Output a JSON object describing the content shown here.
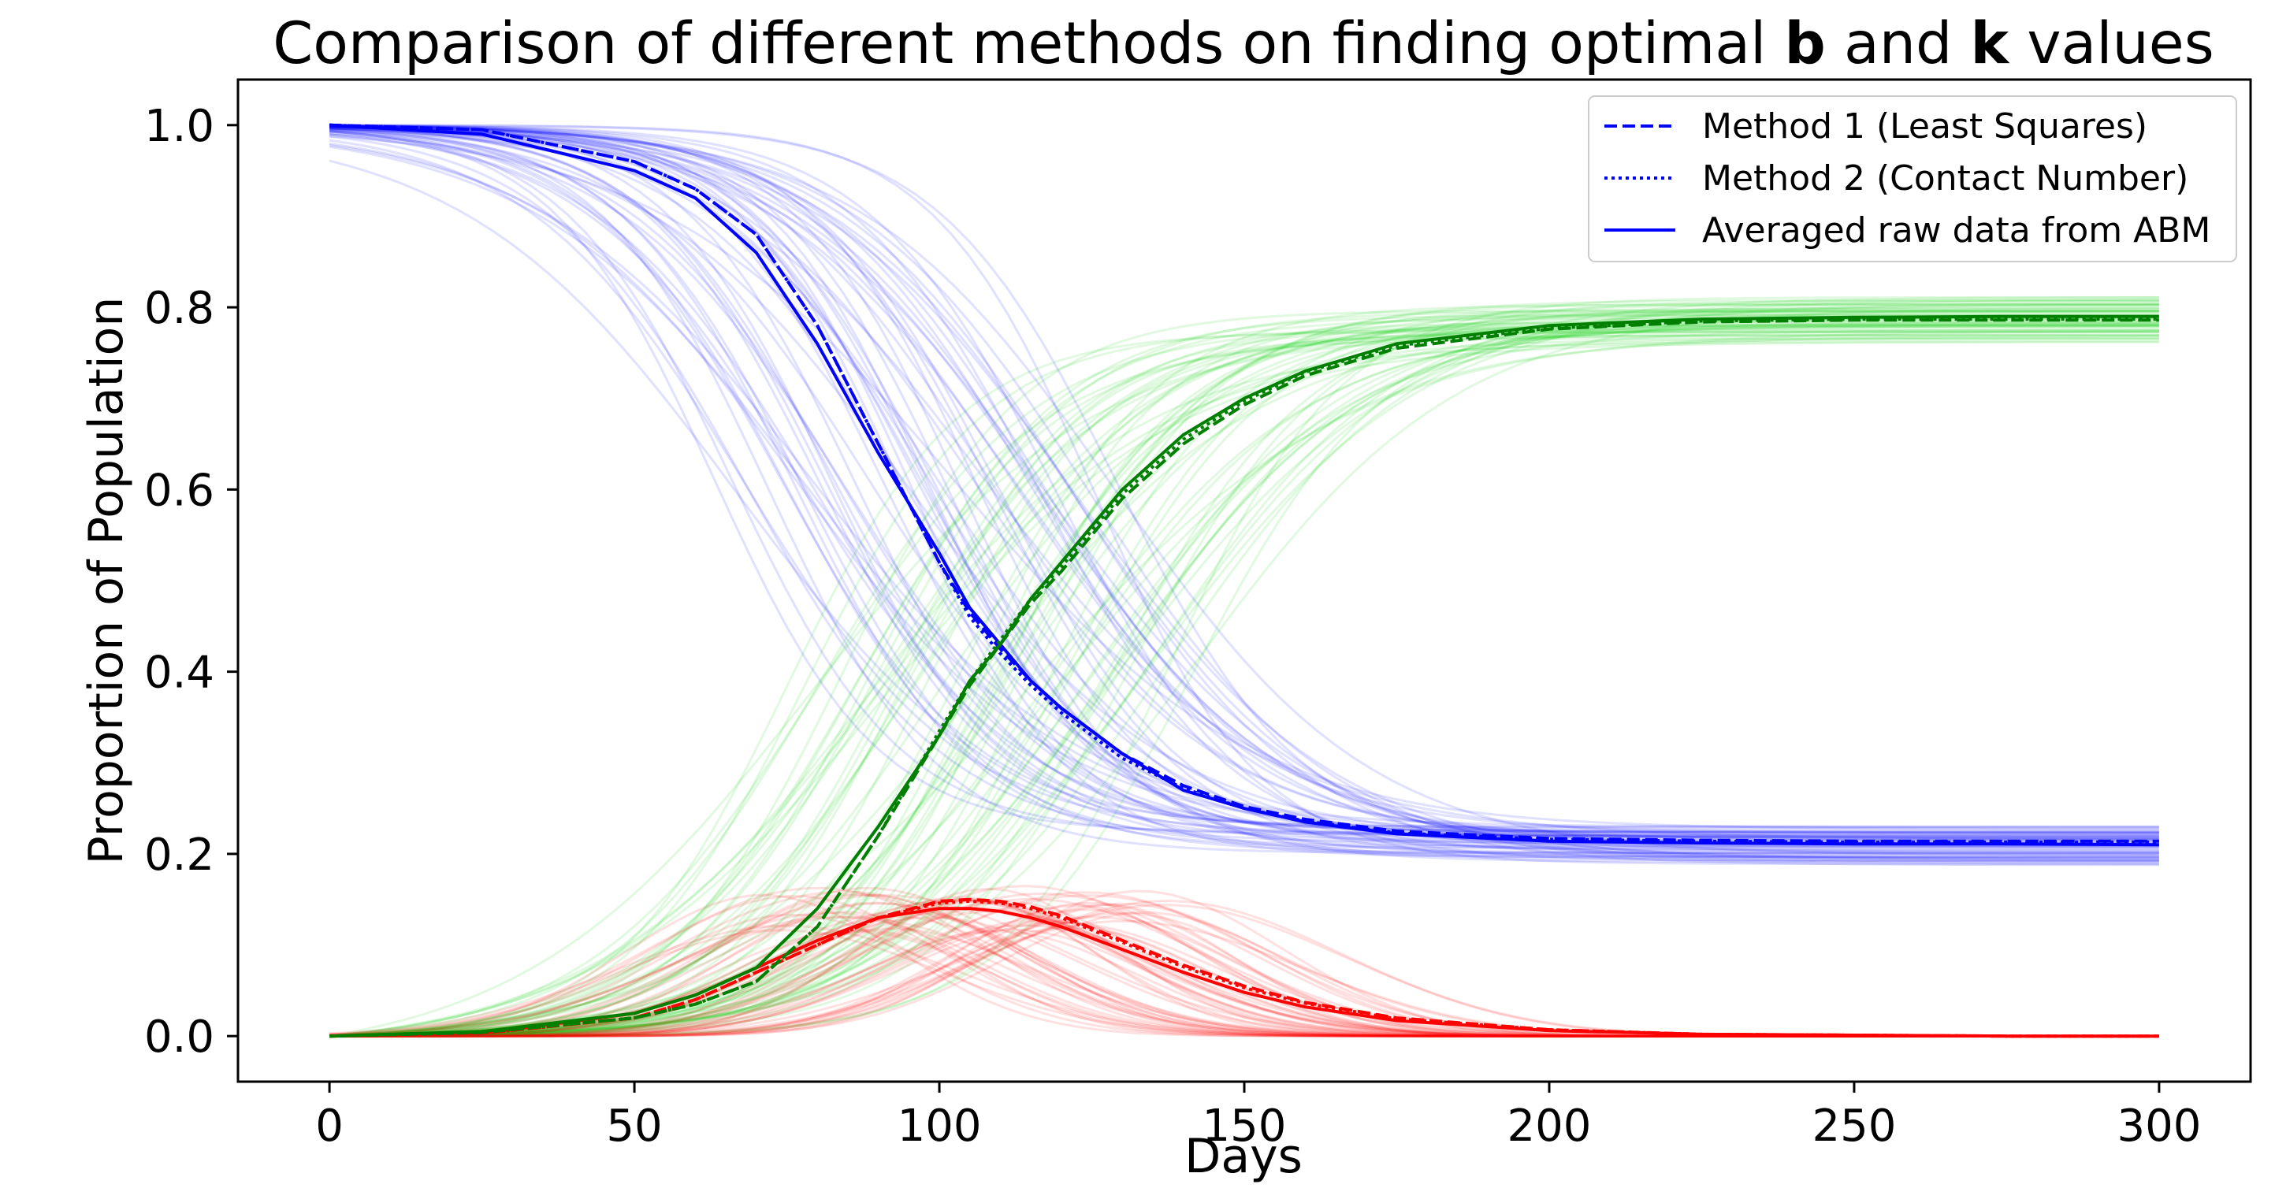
{
  "chart_data": {
    "type": "line",
    "title_parts": [
      {
        "text": "Comparison of different methods on finding optimal ",
        "bold": false
      },
      {
        "text": "b",
        "bold": true
      },
      {
        "text": " and ",
        "bold": false
      },
      {
        "text": "k",
        "bold": true
      },
      {
        "text": " values",
        "bold": false
      }
    ],
    "xlabel": "Days",
    "ylabel": "Proportion of Population",
    "xlim": [
      -15,
      315
    ],
    "ylim": [
      -0.05,
      1.05
    ],
    "xticks": [
      0,
      50,
      100,
      150,
      200,
      250,
      300
    ],
    "xtick_labels": [
      "0",
      "50",
      "100",
      "150",
      "200",
      "250",
      "300"
    ],
    "yticks": [
      0.0,
      0.2,
      0.4,
      0.6,
      0.8,
      1.0
    ],
    "ytick_labels": [
      "0.0",
      "0.2",
      "0.4",
      "0.6",
      "0.8",
      "1.0"
    ],
    "grid": false,
    "legend_placement": "top-right",
    "legend": [
      {
        "label": "Method 1 (Least Squares)",
        "style": "dashed",
        "color": "#0000ff"
      },
      {
        "label": "Method 2 (Contact Number)",
        "style": "dotted",
        "color": "#0000ff"
      },
      {
        "label": "Averaged raw data from ABM",
        "style": "solid",
        "color": "#0000ff"
      }
    ],
    "x": [
      0,
      25,
      50,
      60,
      70,
      80,
      90,
      100,
      105,
      110,
      115,
      120,
      130,
      140,
      150,
      160,
      175,
      200,
      225,
      250,
      275,
      300
    ],
    "series": [
      {
        "group": "susceptible",
        "method": "abm",
        "color": "#0000ff",
        "style": "solid",
        "values": [
          1.0,
          0.99,
          0.95,
          0.92,
          0.86,
          0.76,
          0.64,
          0.53,
          0.47,
          0.43,
          0.39,
          0.36,
          0.31,
          0.27,
          0.25,
          0.235,
          0.222,
          0.214,
          0.212,
          0.211,
          0.211,
          0.21
        ]
      },
      {
        "group": "susceptible",
        "method": "method1",
        "color": "#0000ff",
        "style": "dashed",
        "values": [
          1.0,
          0.995,
          0.96,
          0.93,
          0.88,
          0.78,
          0.65,
          0.52,
          0.465,
          0.425,
          0.39,
          0.36,
          0.31,
          0.275,
          0.252,
          0.238,
          0.225,
          0.217,
          0.215,
          0.214,
          0.214,
          0.214
        ]
      },
      {
        "group": "susceptible",
        "method": "method2",
        "color": "#0000ff",
        "style": "dotted",
        "values": [
          1.0,
          0.995,
          0.96,
          0.93,
          0.88,
          0.78,
          0.65,
          0.52,
          0.46,
          0.42,
          0.385,
          0.355,
          0.305,
          0.272,
          0.25,
          0.236,
          0.223,
          0.216,
          0.214,
          0.213,
          0.213,
          0.213
        ]
      },
      {
        "group": "infected",
        "method": "abm",
        "color": "#ff0000",
        "style": "solid",
        "values": [
          0.0,
          0.003,
          0.025,
          0.045,
          0.075,
          0.105,
          0.13,
          0.14,
          0.14,
          0.137,
          0.13,
          0.12,
          0.095,
          0.07,
          0.048,
          0.032,
          0.017,
          0.006,
          0.002,
          0.001,
          0.0,
          0.0
        ]
      },
      {
        "group": "infected",
        "method": "method1",
        "color": "#ff0000",
        "style": "dashed",
        "values": [
          0.0,
          0.003,
          0.02,
          0.04,
          0.07,
          0.1,
          0.13,
          0.148,
          0.15,
          0.148,
          0.142,
          0.132,
          0.105,
          0.078,
          0.055,
          0.037,
          0.02,
          0.007,
          0.002,
          0.001,
          0.0,
          0.0
        ]
      },
      {
        "group": "infected",
        "method": "method2",
        "color": "#ff0000",
        "style": "dotted",
        "values": [
          0.0,
          0.003,
          0.02,
          0.04,
          0.07,
          0.1,
          0.13,
          0.146,
          0.148,
          0.146,
          0.14,
          0.13,
          0.103,
          0.076,
          0.053,
          0.036,
          0.019,
          0.007,
          0.002,
          0.001,
          0.0,
          0.0
        ]
      },
      {
        "group": "recovered",
        "method": "abm",
        "color": "#007f00",
        "style": "solid",
        "values": [
          0.0,
          0.005,
          0.025,
          0.045,
          0.075,
          0.14,
          0.23,
          0.33,
          0.39,
          0.43,
          0.48,
          0.52,
          0.6,
          0.66,
          0.7,
          0.73,
          0.76,
          0.78,
          0.787,
          0.789,
          0.79,
          0.79
        ]
      },
      {
        "group": "recovered",
        "method": "method1",
        "color": "#007f00",
        "style": "dashed",
        "values": [
          0.0,
          0.004,
          0.02,
          0.035,
          0.06,
          0.12,
          0.22,
          0.33,
          0.385,
          0.43,
          0.475,
          0.51,
          0.59,
          0.65,
          0.693,
          0.725,
          0.755,
          0.776,
          0.784,
          0.786,
          0.786,
          0.786
        ]
      },
      {
        "group": "recovered",
        "method": "method2",
        "color": "#007f00",
        "style": "dotted",
        "values": [
          0.0,
          0.004,
          0.02,
          0.035,
          0.06,
          0.12,
          0.22,
          0.335,
          0.39,
          0.435,
          0.48,
          0.515,
          0.595,
          0.655,
          0.697,
          0.729,
          0.758,
          0.777,
          0.785,
          0.787,
          0.787,
          0.787
        ]
      }
    ],
    "raw_runs": {
      "count_per_group": 60,
      "colors": {
        "susceptible": "#0000ff",
        "infected": "#ff0000",
        "recovered": "#00cc00"
      },
      "opacity": 0.12
    }
  }
}
